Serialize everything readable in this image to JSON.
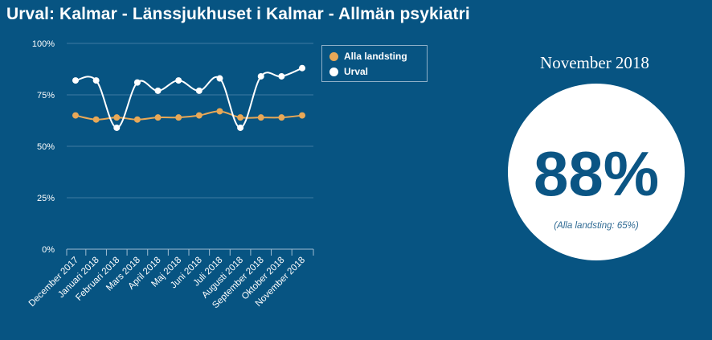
{
  "title": "Urval: Kalmar - Länssjukhuset i Kalmar - Allmän psykiatri",
  "highlight": {
    "period": "November 2018",
    "value": "88%",
    "comparison": "(Alla landsting: 65%)"
  },
  "colors": {
    "background": "#075482",
    "alla_landsting": "#e8a857",
    "urval": "#ffffff",
    "accent_text": "#0b5584"
  },
  "chart_data": {
    "type": "line",
    "title": "",
    "xlabel": "",
    "ylabel": "",
    "ylim": [
      0,
      100
    ],
    "y_ticks": [
      "0%",
      "25%",
      "50%",
      "75%",
      "100%"
    ],
    "grid": true,
    "legend_position": "top-right",
    "categories": [
      "December 2017",
      "Januari 2018",
      "Februari 2018",
      "Mars 2018",
      "April 2018",
      "Maj 2018",
      "Juni 2018",
      "Juli 2018",
      "Augusti 2018",
      "September 2018",
      "Oktober 2018",
      "November 2018"
    ],
    "series": [
      {
        "name": "Alla landsting",
        "values": [
          65,
          63,
          64,
          63,
          64,
          64,
          65,
          67,
          64,
          64,
          64,
          65
        ]
      },
      {
        "name": "Urval",
        "values": [
          82,
          82,
          59,
          81,
          77,
          82,
          77,
          83,
          59,
          84,
          84,
          88
        ]
      }
    ]
  }
}
